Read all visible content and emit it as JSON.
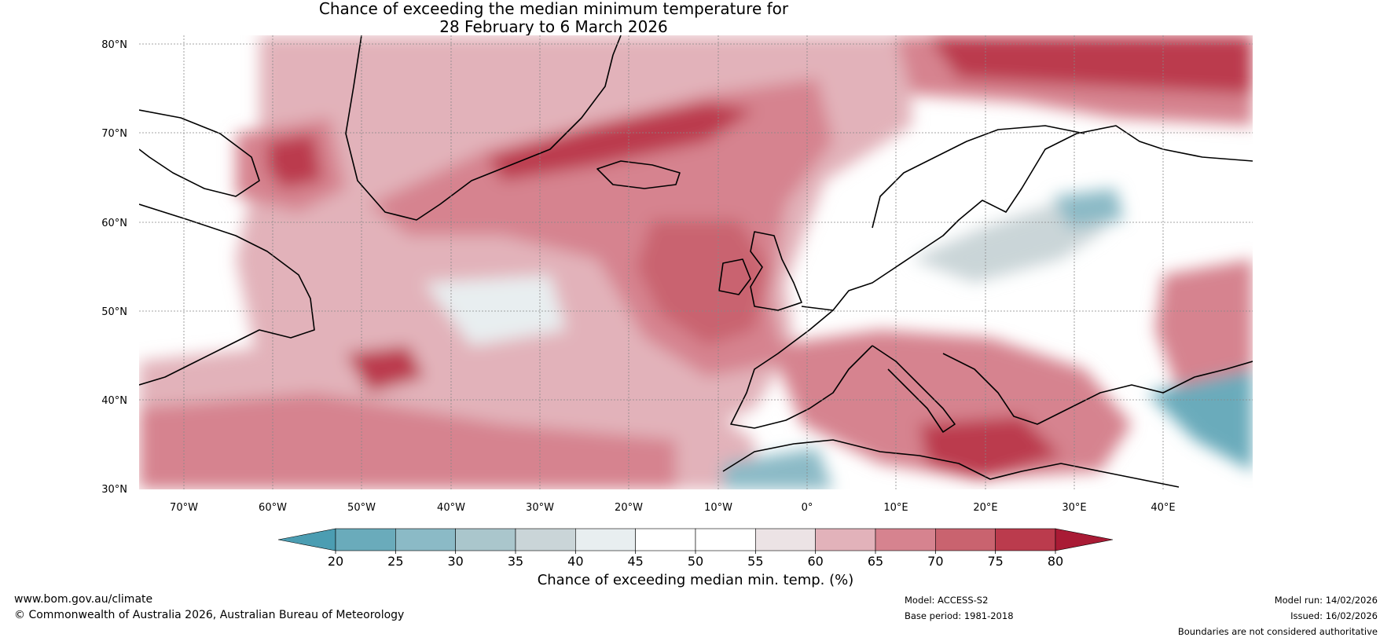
{
  "title": {
    "line1": "Chance of exceeding the median minimum temperature for",
    "line2": "28 February to 6 March 2026"
  },
  "map": {
    "lat_labels": [
      "80°N",
      "70°N",
      "60°N",
      "50°N",
      "40°N",
      "30°N"
    ],
    "lat_values": [
      80,
      70,
      60,
      50,
      40,
      30
    ],
    "lon_labels": [
      "70°W",
      "60°W",
      "50°W",
      "40°W",
      "30°W",
      "20°W",
      "10°W",
      "0°",
      "10°E",
      "20°E",
      "30°E",
      "40°E"
    ],
    "lon_values": [
      -70,
      -60,
      -50,
      -40,
      -30,
      -20,
      -10,
      0,
      10,
      20,
      30,
      40
    ],
    "extent": {
      "lon_min": -75,
      "lon_max": 50,
      "lat_min": 30,
      "lat_max": 81
    }
  },
  "colorbar": {
    "ticks": [
      "20",
      "25",
      "30",
      "35",
      "40",
      "45",
      "50",
      "55",
      "60",
      "65",
      "70",
      "75",
      "80"
    ],
    "colors": [
      "#4b9db2",
      "#6aabbb",
      "#8bbac6",
      "#aac6cc",
      "#cad5d8",
      "#e8eef0",
      "#ffffff",
      "#ffffff",
      "#ece3e5",
      "#e2b2ba",
      "#d6838f",
      "#c9636f",
      "#bb3b4d",
      "#a91b35"
    ],
    "label": "Chance of exceeding median min. temp. (%)"
  },
  "footer": {
    "website": "www.bom.gov.au/climate",
    "copyright": "© Commonwealth of Australia 2026, Australian Bureau of Meteorology",
    "model": "Model: ACCESS-S2",
    "base_period": "Base period: 1981-2018",
    "model_run": "Model run: 14/02/2026",
    "issued": "Issued: 16/02/2026",
    "disclaimer": "Boundaries are not considered authoritative"
  }
}
